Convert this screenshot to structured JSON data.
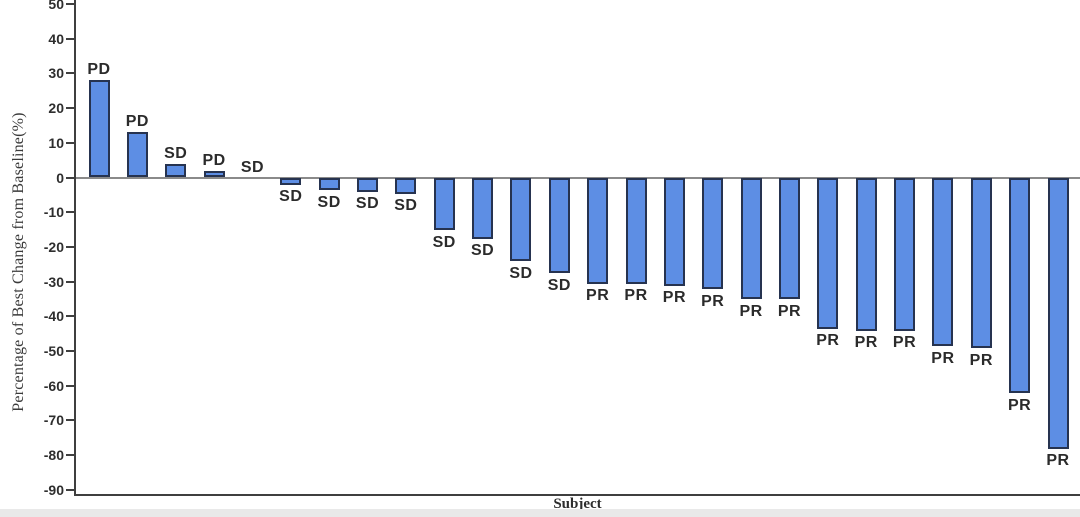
{
  "chart_data": {
    "type": "bar",
    "subtype": "waterfall",
    "title": "",
    "xlabel": "Subject",
    "ylabel": "Percentage of Best Change from Baseline(%)",
    "ylim": [
      -90,
      50
    ],
    "ytick_interval": 10,
    "yticks": [
      50,
      40,
      30,
      20,
      10,
      0,
      -10,
      -20,
      -30,
      -40,
      -50,
      -60,
      -70,
      -80,
      -90
    ],
    "grid": false,
    "legend_position": "none",
    "x_tick_labels_shown": false,
    "bars": [
      {
        "subject": 1,
        "response": "PD",
        "value": 28
      },
      {
        "subject": 2,
        "response": "PD",
        "value": 13
      },
      {
        "subject": 3,
        "response": "SD",
        "value": 4
      },
      {
        "subject": 4,
        "response": "PD",
        "value": 2
      },
      {
        "subject": 5,
        "response": "SD",
        "value": 0
      },
      {
        "subject": 6,
        "response": "SD",
        "value": -2
      },
      {
        "subject": 7,
        "response": "SD",
        "value": -3.5
      },
      {
        "subject": 8,
        "response": "SD",
        "value": -4
      },
      {
        "subject": 9,
        "response": "SD",
        "value": -4.5
      },
      {
        "subject": 10,
        "response": "SD",
        "value": -15
      },
      {
        "subject": 11,
        "response": "SD",
        "value": -17.5
      },
      {
        "subject": 12,
        "response": "SD",
        "value": -24
      },
      {
        "subject": 13,
        "response": "SD",
        "value": -27.5
      },
      {
        "subject": 14,
        "response": "PR",
        "value": -30.5
      },
      {
        "subject": 15,
        "response": "PR",
        "value": -30.5
      },
      {
        "subject": 16,
        "response": "PR",
        "value": -31
      },
      {
        "subject": 17,
        "response": "PR",
        "value": -32
      },
      {
        "subject": 18,
        "response": "PR",
        "value": -35
      },
      {
        "subject": 19,
        "response": "PR",
        "value": -35
      },
      {
        "subject": 20,
        "response": "PR",
        "value": -43.5
      },
      {
        "subject": 21,
        "response": "PR",
        "value": -44
      },
      {
        "subject": 22,
        "response": "PR",
        "value": -44
      },
      {
        "subject": 23,
        "response": "PR",
        "value": -48.5
      },
      {
        "subject": 24,
        "response": "PR",
        "value": -49
      },
      {
        "subject": 25,
        "response": "PR",
        "value": -62
      },
      {
        "subject": 26,
        "response": "PR",
        "value": -78
      }
    ]
  },
  "colors": {
    "bar_fill": "#5D8EE4",
    "bar_border": "#263350",
    "axis": "#3f3f3f",
    "zero_line": "#8a8a8a",
    "text": "#2e2e2e",
    "background": "#ffffff"
  }
}
